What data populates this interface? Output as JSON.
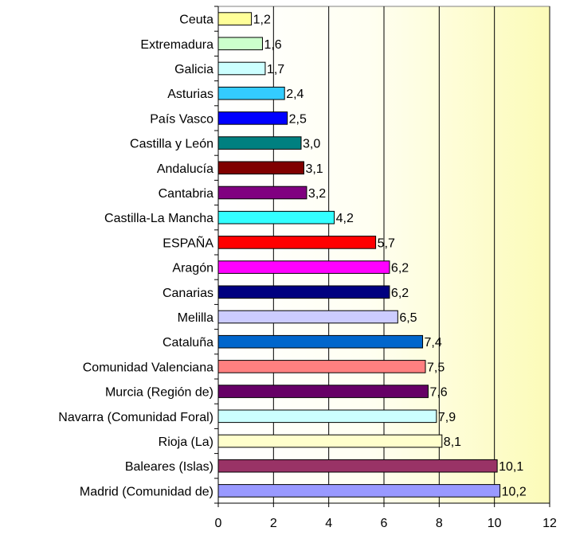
{
  "chart_data": {
    "type": "bar",
    "orientation": "horizontal",
    "title": "",
    "xlabel": "",
    "ylabel": "",
    "xlim": [
      0,
      12
    ],
    "x_ticks": [
      "0",
      "2",
      "4",
      "6",
      "8",
      "10",
      "12"
    ],
    "grid": "vertical",
    "legend": "none",
    "background": "gradient-white-to-pale-yellow",
    "categories": [
      "Ceuta",
      "Extremadura",
      "Galicia",
      "Asturias",
      "País Vasco",
      "Castilla y León",
      "Andalucía",
      "Cantabria",
      "Castilla-La Mancha",
      "ESPAÑA",
      "Aragón",
      "Canarias",
      "Melilla",
      "Cataluña",
      "Comunidad Valenciana",
      "Murcia (Región de)",
      "Navarra (Comunidad Foral)",
      "Rioja (La)",
      "Baleares (Islas)",
      "Madrid (Comunidad de)"
    ],
    "values": [
      1.2,
      1.6,
      1.7,
      2.4,
      2.5,
      3.0,
      3.1,
      3.2,
      4.2,
      5.7,
      6.2,
      6.2,
      6.5,
      7.4,
      7.5,
      7.6,
      7.9,
      8.1,
      10.1,
      10.2
    ],
    "value_labels": [
      "1,2",
      "1,6",
      "1,7",
      "2,4",
      "2,5",
      "3,0",
      "3,1",
      "3,2",
      "4,2",
      "5,7",
      "6,2",
      "6,2",
      "6,5",
      "7,4",
      "7,5",
      "7,6",
      "7,9",
      "8,1",
      "10,1",
      "10,2"
    ],
    "colors": [
      "#FFFF99",
      "#CCFFCC",
      "#CCFFFF",
      "#33CCFF",
      "#0000FF",
      "#008080",
      "#800000",
      "#800080",
      "#33FFFF",
      "#FF0000",
      "#FF00FF",
      "#000080",
      "#CCCCFF",
      "#0066CC",
      "#FF8080",
      "#660066",
      "#CCFFFF",
      "#FFFFCC",
      "#993366",
      "#9999FF"
    ]
  }
}
